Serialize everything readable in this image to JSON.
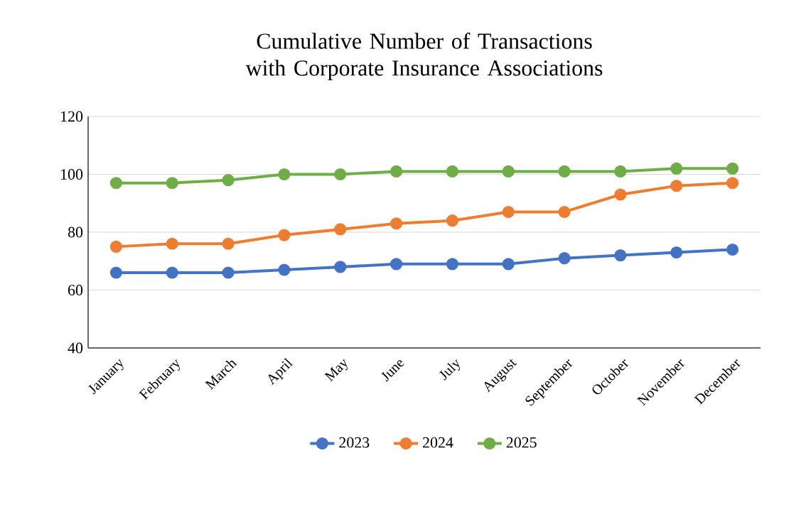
{
  "chart_data": {
    "type": "line",
    "title": "Cumulative Number of Transactions with Corporate Insurance Associations",
    "categories": [
      "January",
      "February",
      "March",
      "April",
      "May",
      "June",
      "July",
      "August",
      "September",
      "October",
      "November",
      "December"
    ],
    "series": [
      {
        "name": "2023",
        "color": "#4472c4",
        "values": [
          66,
          66,
          66,
          67,
          68,
          69,
          69,
          69,
          71,
          72,
          73,
          74
        ]
      },
      {
        "name": "2024",
        "color": "#ed7d31",
        "values": [
          75,
          76,
          76,
          79,
          81,
          83,
          84,
          87,
          87,
          93,
          96,
          97
        ]
      },
      {
        "name": "2025",
        "color": "#70ad47",
        "values": [
          97,
          97,
          98,
          100,
          100,
          101,
          101,
          101,
          101,
          101,
          102,
          102
        ]
      }
    ],
    "ylim": [
      40,
      120
    ],
    "yticks": [
      40,
      60,
      80,
      100,
      120
    ],
    "grid": "y",
    "legend": "bottom",
    "marker": "circle",
    "line_style": "solid"
  }
}
